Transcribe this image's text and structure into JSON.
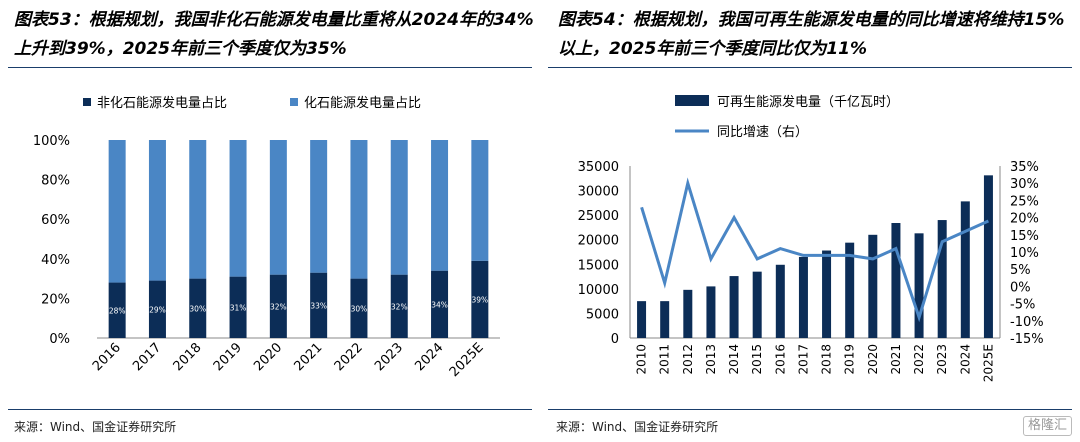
{
  "left": {
    "title": "图表53：根据规划，我国非化石能源发电量比重将从2024年的34%上升到39%，2025年前三个季度仅为35%",
    "source": "来源：Wind、国金证券研究所"
  },
  "right": {
    "title": "图表54：根据规划，我国可再生能源发电量的同比增速将维持15%以上，2025年前三个季度同比仅为11%",
    "source": "来源：Wind、国金证券研究所"
  },
  "watermark": "格隆汇",
  "colors": {
    "dark_navy": "#0c2d57",
    "mid_blue": "#4a86c5",
    "rule": "#1a3e6b"
  },
  "chart_data": [
    {
      "type": "bar",
      "stacked": true,
      "categories": [
        "2016",
        "2017",
        "2018",
        "2019",
        "2020",
        "2021",
        "2022",
        "2023",
        "2024",
        "2025E"
      ],
      "series": [
        {
          "name": "非化石能源发电量占比",
          "color": "#0c2d57",
          "values": [
            28,
            29,
            30,
            31,
            32,
            33,
            30,
            32,
            34,
            39
          ],
          "labels": [
            "28%",
            "29%",
            "30%",
            "31%",
            "32%",
            "33%",
            "30%",
            "32%",
            "34%",
            "39%"
          ]
        },
        {
          "name": "化石能源发电量占比",
          "color": "#4a86c5",
          "values": [
            72,
            71,
            70,
            69,
            68,
            67,
            70,
            68,
            66,
            61
          ]
        }
      ],
      "ylim": [
        0,
        100
      ],
      "yticks": [
        "0%",
        "20%",
        "40%",
        "60%",
        "80%",
        "100%"
      ],
      "legend": "top-left",
      "grid": false
    },
    {
      "type": "bar",
      "categories": [
        "2010",
        "2011",
        "2012",
        "2013",
        "2014",
        "2015",
        "2016",
        "2017",
        "2018",
        "2019",
        "2020",
        "2021",
        "2022",
        "2023",
        "2024",
        "2025E"
      ],
      "series": [
        {
          "name": "可再生能源发电量（千亿瓦时）",
          "type": "bar",
          "color": "#0c2d57",
          "axis": "left",
          "values": [
            7500,
            7500,
            9800,
            10500,
            12600,
            13500,
            14900,
            16500,
            17800,
            19400,
            21000,
            23400,
            21300,
            24000,
            27800,
            33100
          ]
        },
        {
          "name": "同比增速（右）",
          "type": "line",
          "color": "#4a86c5",
          "axis": "right",
          "values": [
            23,
            1,
            30,
            8,
            20,
            8,
            11,
            9,
            9,
            9,
            8,
            11,
            -9,
            13,
            16,
            19
          ]
        }
      ],
      "ylim_left": [
        0,
        35000
      ],
      "yticks_left": [
        "0",
        "5000",
        "10000",
        "15000",
        "20000",
        "25000",
        "30000",
        "35000"
      ],
      "ylim_right": [
        -15,
        35
      ],
      "yticks_right": [
        "-15%",
        "-10%",
        "-5%",
        "0%",
        "5%",
        "10%",
        "15%",
        "20%",
        "25%",
        "30%",
        "35%"
      ],
      "legend": "top-left",
      "grid": false
    }
  ]
}
